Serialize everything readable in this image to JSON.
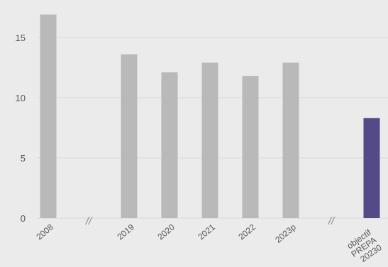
{
  "chart_data": {
    "type": "bar",
    "categories": [
      "2008",
      "//",
      "2019",
      "2020",
      "2021",
      "2022",
      "2023p",
      "//",
      "objectif PREPA 20230"
    ],
    "values": [
      16.9,
      null,
      13.6,
      12.1,
      12.9,
      11.8,
      12.9,
      null,
      8.3
    ],
    "highlight_index": 8,
    "ylim": [
      0,
      17.4
    ],
    "yticks": [
      0,
      5,
      10,
      15
    ],
    "ytick_labels": [
      "0",
      "5",
      "10",
      "15"
    ],
    "grid": true,
    "title": "",
    "xlabel": "",
    "ylabel": "",
    "colors": {
      "background": "#ebebeb",
      "bar": "#b9b9b9",
      "highlight": "#554a88",
      "grid": "#dadada",
      "text": "#555555",
      "break": "#8a8a8a"
    }
  }
}
